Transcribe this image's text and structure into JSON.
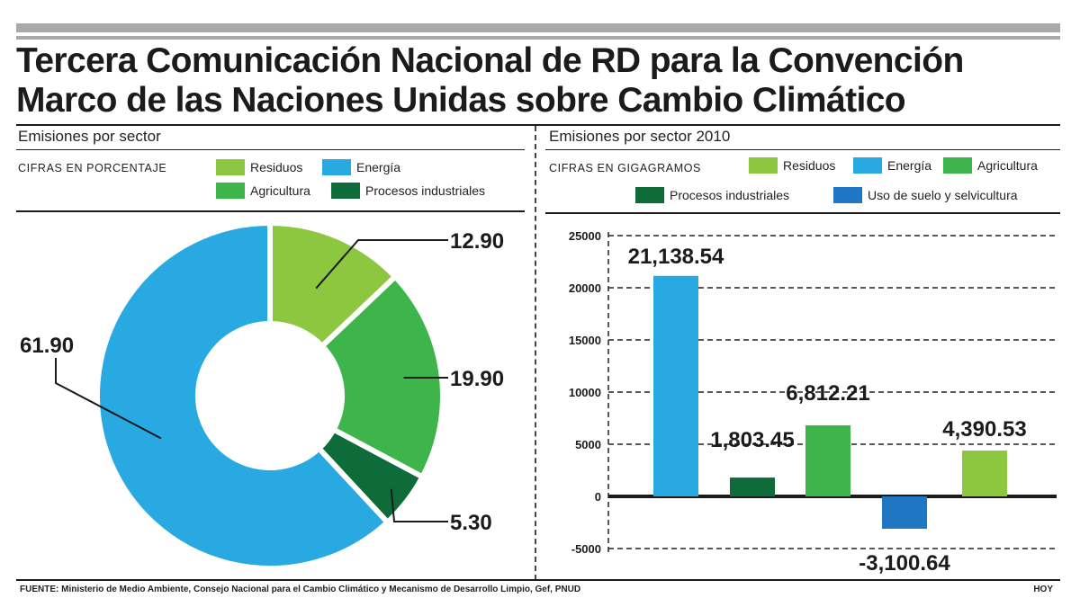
{
  "title": "Tercera Comunicación Nacional de RD para la Convención Marco de las Naciones Unidas sobre Cambio Climático",
  "left_panel": {
    "section_title": "Emisiones por sector",
    "units": "CIFRAS EN PORCENTAJE",
    "legend": [
      {
        "label": "Residuos",
        "color": "#8dc63f"
      },
      {
        "label": "Energía",
        "color": "#29a9e1"
      },
      {
        "label": "Agricultura",
        "color": "#3db54a"
      },
      {
        "label": "Procesos industriales",
        "color": "#0e6b3a"
      }
    ]
  },
  "right_panel": {
    "section_title": "Emisiones por sector 2010",
    "units": "CIFRAS EN GIGAGRAMOS",
    "legend": [
      {
        "label": "Residuos",
        "color": "#8dc63f"
      },
      {
        "label": "Energía",
        "color": "#29a9e1"
      },
      {
        "label": "Agricultura",
        "color": "#3db54a"
      },
      {
        "label": "Procesos industriales",
        "color": "#0e6b3a"
      },
      {
        "label": "Uso de suelo y selvicultura",
        "color": "#1f77c4"
      }
    ]
  },
  "chart_data": [
    {
      "type": "pie",
      "title": "Emisiones por sector",
      "subtitle": "CIFRAS EN PORCENTAJE",
      "donut": true,
      "categories": [
        "Residuos",
        "Agricultura",
        "Procesos industriales",
        "Energía"
      ],
      "values": [
        12.9,
        19.9,
        5.3,
        61.9
      ],
      "labels": [
        "12.90",
        "19.90",
        "5.30",
        "61.90"
      ],
      "colors": [
        "#8dc63f",
        "#3db54a",
        "#0e6b3a",
        "#29a9e1"
      ]
    },
    {
      "type": "bar",
      "title": "Emisiones por sector 2010",
      "subtitle": "CIFRAS EN GIGAGRAMOS",
      "categories": [
        "Energía",
        "Procesos industriales",
        "Agricultura",
        "Uso de suelo y selvicultura",
        "Residuos"
      ],
      "values": [
        21138.54,
        1803.45,
        6812.21,
        -3100.64,
        4390.53
      ],
      "labels": [
        "21,138.54",
        "1,803.45",
        "6,812.21",
        "-3,100.64",
        "4,390.53"
      ],
      "colors": [
        "#29a9e1",
        "#0e6b3a",
        "#3db54a",
        "#1f77c4",
        "#8dc63f"
      ],
      "ylim": [
        -5000,
        25000
      ],
      "yticks": [
        25000,
        20000,
        15000,
        10000,
        5000,
        0,
        -5000
      ],
      "ytick_labels": [
        "25000",
        "20000",
        "15000",
        "10000",
        "5000",
        "0",
        "-5000"
      ],
      "grid": true
    }
  ],
  "footer": {
    "source": "FUENTE: Ministerio de Medio Ambiente, Consejo Nacional para el Cambio Climático y Mecanismo de Desarrollo Limpio, Gef, PNUD",
    "credit": "HOY"
  }
}
